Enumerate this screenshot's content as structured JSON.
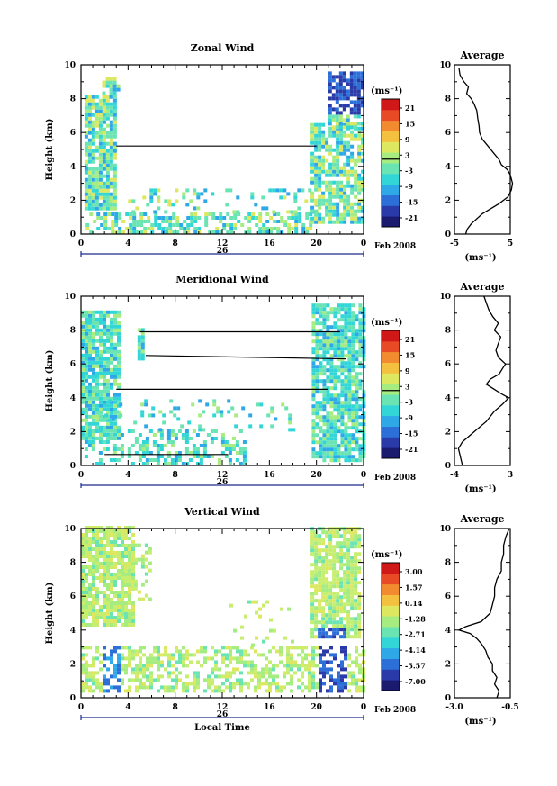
{
  "figure": {
    "xlabel_bottom": "Local Time",
    "date_label": "Feb 2008",
    "day_label": "26",
    "time_ticks": [
      "0",
      "4",
      "8",
      "12",
      "16",
      "20",
      "0"
    ]
  },
  "chart_data": [
    {
      "type": "heatmap",
      "title": "Zonal Wind",
      "ylabel": "Height (km)",
      "xlabel": "",
      "x_range": [
        0,
        24
      ],
      "ylim": [
        0,
        10
      ],
      "yticks": [
        "0",
        "2",
        "4",
        "6",
        "8",
        "10"
      ],
      "colorbar": {
        "unit": "(ms⁻¹)",
        "ticks": [
          "21",
          "15",
          "9",
          "3",
          "-3",
          "-9",
          "-15",
          "-21"
        ]
      },
      "profile": {
        "title": "Average",
        "xlabel": "(ms⁻¹)",
        "xticks": [
          "-5",
          "5"
        ],
        "xlim": [
          -5,
          5
        ],
        "ylim": [
          0,
          10
        ],
        "yticks": [
          "0",
          "2",
          "4",
          "6",
          "8",
          "10"
        ],
        "points": [
          [
            -3,
            0.0
          ],
          [
            -2.7,
            0.3
          ],
          [
            -2,
            0.6
          ],
          [
            0,
            1.2
          ],
          [
            3,
            1.8
          ],
          [
            4.6,
            2.2
          ],
          [
            5.2,
            2.6
          ],
          [
            5.4,
            3.0
          ],
          [
            5.0,
            3.5
          ],
          [
            4.5,
            3.8
          ],
          [
            3.4,
            4.1
          ],
          [
            3.0,
            4.4
          ],
          [
            2.0,
            4.8
          ],
          [
            1.0,
            5.2
          ],
          [
            0,
            5.6
          ],
          [
            -0.5,
            6.0
          ],
          [
            -0.6,
            6.4
          ],
          [
            -0.8,
            6.8
          ],
          [
            -1.0,
            7.3
          ],
          [
            -1.5,
            7.7
          ],
          [
            -2.0,
            8.0
          ],
          [
            -2.8,
            8.3
          ],
          [
            -2.5,
            8.7
          ],
          [
            -3.3,
            9.0
          ],
          [
            -4.0,
            9.4
          ],
          [
            -4.2,
            9.8
          ]
        ]
      },
      "contours": [
        [
          [
            3.0,
            5.2
          ],
          [
            20.0,
            5.2
          ]
        ]
      ]
    },
    {
      "type": "heatmap",
      "title": "Meridional Wind",
      "ylabel": "Height (km)",
      "xlabel": "",
      "x_range": [
        0,
        24
      ],
      "ylim": [
        0,
        10
      ],
      "yticks": [
        "0",
        "2",
        "4",
        "6",
        "8",
        "10"
      ],
      "colorbar": {
        "unit": "(ms⁻¹)",
        "ticks": [
          "21",
          "15",
          "9",
          "3",
          "-3",
          "-9",
          "-15",
          "-21"
        ]
      },
      "profile": {
        "title": "Average",
        "xlabel": "(ms⁻¹)",
        "xticks": [
          "-4",
          "3"
        ],
        "xlim": [
          -4,
          3
        ],
        "ylim": [
          0,
          10
        ],
        "yticks": [
          "0",
          "2",
          "4",
          "6",
          "8",
          "10"
        ],
        "points": [
          [
            -3.0,
            0.0
          ],
          [
            -3.3,
            0.6
          ],
          [
            -3.5,
            1.0
          ],
          [
            -3.0,
            1.4
          ],
          [
            -1.5,
            2.0
          ],
          [
            0,
            2.6
          ],
          [
            1.0,
            3.2
          ],
          [
            2.0,
            3.6
          ],
          [
            2.8,
            4.0
          ],
          [
            2.0,
            4.2
          ],
          [
            1.0,
            4.5
          ],
          [
            0,
            4.8
          ],
          [
            0.5,
            5.1
          ],
          [
            1.6,
            5.4
          ],
          [
            2.0,
            5.7
          ],
          [
            2.4,
            6.0
          ],
          [
            1.5,
            6.4
          ],
          [
            1.2,
            6.8
          ],
          [
            1.5,
            7.2
          ],
          [
            1.8,
            7.6
          ],
          [
            1.0,
            8.0
          ],
          [
            1.5,
            8.4
          ],
          [
            0.8,
            8.8
          ],
          [
            0.3,
            9.2
          ],
          [
            0,
            9.6
          ],
          [
            -0.3,
            10.0
          ]
        ]
      },
      "contours": [
        [
          [
            5.0,
            7.9
          ],
          [
            22.0,
            7.9
          ]
        ],
        [
          [
            5.5,
            6.5
          ],
          [
            22.5,
            6.3
          ]
        ],
        [
          [
            3.0,
            4.5
          ],
          [
            21.0,
            4.5
          ]
        ],
        [
          [
            2.0,
            0.65
          ],
          [
            12.5,
            0.65
          ]
        ]
      ]
    },
    {
      "type": "heatmap",
      "title": "Vertical Wind",
      "ylabel": "Height (km)",
      "xlabel": "Local Time",
      "x_range": [
        0,
        24
      ],
      "ylim": [
        0,
        10
      ],
      "yticks": [
        "0",
        "2",
        "4",
        "6",
        "8",
        "10"
      ],
      "colorbar": {
        "unit": "(ms⁻¹)",
        "ticks": [
          "3.00",
          "1.57",
          "0.14",
          "-1.28",
          "-2.71",
          "-4.14",
          "-5.57",
          "-7.00"
        ]
      },
      "profile": {
        "title": "Average",
        "xlabel": "(ms⁻¹)",
        "xticks": [
          "-3.0",
          "-0.5"
        ],
        "xlim": [
          -3.0,
          -0.5
        ],
        "ylim": [
          0,
          10
        ],
        "yticks": [
          "0",
          "2",
          "4",
          "6",
          "8",
          "10"
        ],
        "points": [
          [
            -1.1,
            0.0
          ],
          [
            -1.0,
            0.4
          ],
          [
            -1.2,
            0.8
          ],
          [
            -1.1,
            1.2
          ],
          [
            -1.3,
            1.6
          ],
          [
            -1.3,
            2.0
          ],
          [
            -1.5,
            2.4
          ],
          [
            -1.6,
            2.8
          ],
          [
            -1.8,
            3.2
          ],
          [
            -2.0,
            3.5
          ],
          [
            -2.3,
            3.8
          ],
          [
            -2.8,
            4.0
          ],
          [
            -2.5,
            4.2
          ],
          [
            -1.8,
            4.5
          ],
          [
            -1.4,
            5.0
          ],
          [
            -1.3,
            5.5
          ],
          [
            -1.2,
            6.0
          ],
          [
            -1.2,
            6.5
          ],
          [
            -1.1,
            7.0
          ],
          [
            -0.9,
            7.5
          ],
          [
            -0.9,
            8.0
          ],
          [
            -0.8,
            8.5
          ],
          [
            -0.8,
            9.0
          ],
          [
            -0.7,
            9.5
          ],
          [
            -0.55,
            10.0
          ]
        ]
      },
      "contours": []
    }
  ]
}
